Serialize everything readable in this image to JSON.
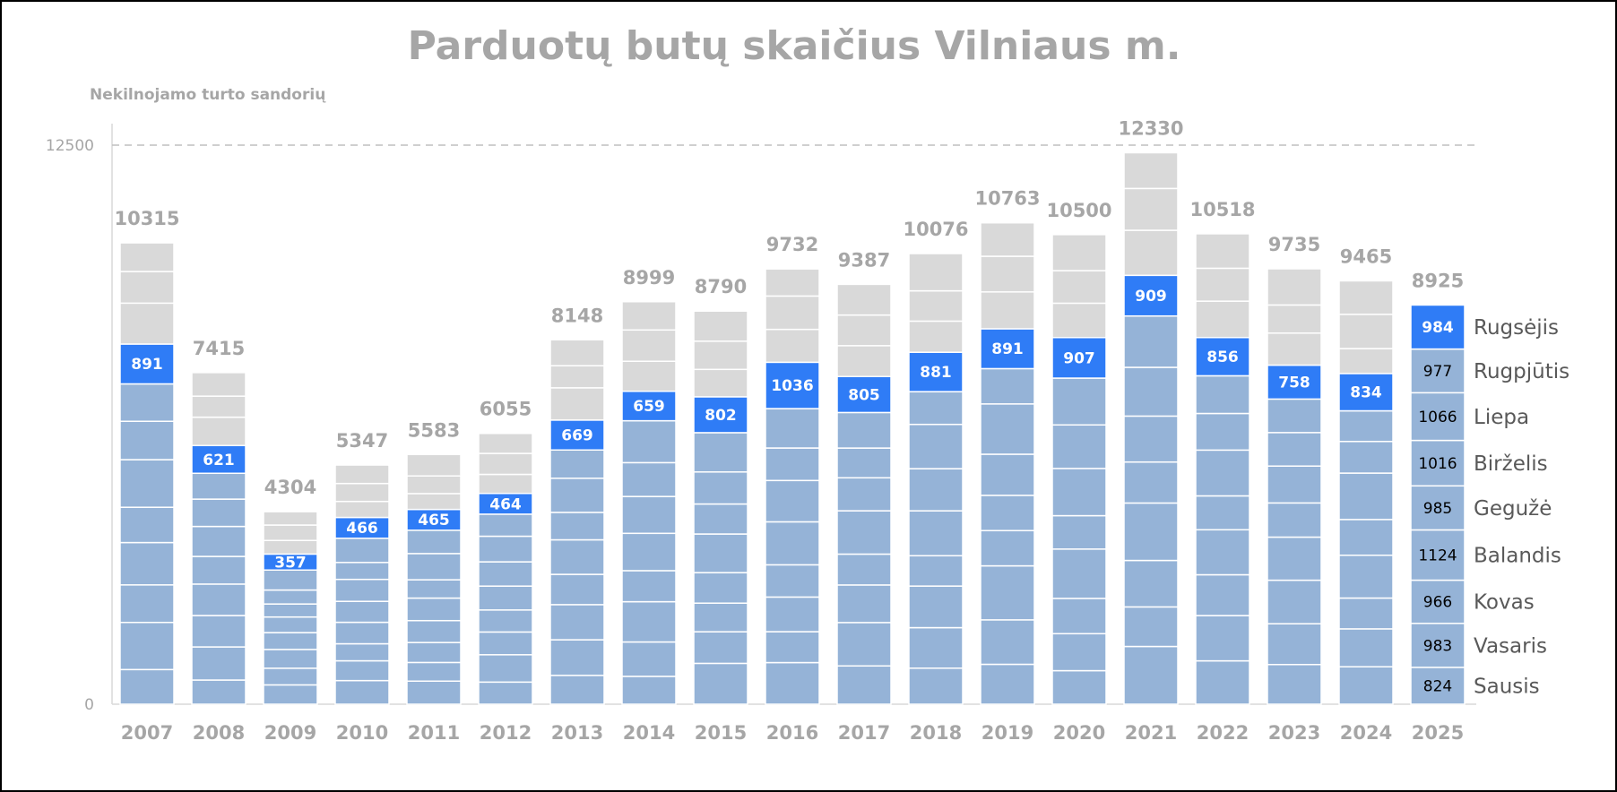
{
  "chart_data": {
    "type": "bar",
    "title": "Parduotų butų skaičius Vilniaus m.",
    "ylabel": "Nekilnojamo turto sandorių",
    "ylim": [
      0,
      12500
    ],
    "yticks": [
      0,
      12500
    ],
    "stacked": true,
    "categories": [
      "2007",
      "2008",
      "2009",
      "2010",
      "2011",
      "2012",
      "2013",
      "2014",
      "2015",
      "2016",
      "2017",
      "2018",
      "2019",
      "2020",
      "2021",
      "2022",
      "2023",
      "2024",
      "2025"
    ],
    "totals": [
      10315,
      7415,
      4304,
      5347,
      5583,
      6055,
      8148,
      8999,
      8790,
      9732,
      9387,
      10076,
      10763,
      10500,
      12330,
      10518,
      9735,
      9465,
      8925
    ],
    "september_values": [
      891,
      621,
      357,
      466,
      465,
      464,
      669,
      659,
      802,
      1036,
      805,
      881,
      891,
      907,
      909,
      856,
      758,
      834,
      984
    ],
    "months_2025": [
      {
        "name": "Sausis",
        "value": 824
      },
      {
        "name": "Vasaris",
        "value": 983
      },
      {
        "name": "Kovas",
        "value": 966
      },
      {
        "name": "Balandis",
        "value": 1124
      },
      {
        "name": "Gegužė",
        "value": 985
      },
      {
        "name": "Birželis",
        "value": 1016
      },
      {
        "name": "Liepa",
        "value": 1066
      },
      {
        "name": "Rugpjūtis",
        "value": 977
      },
      {
        "name": "Rugsėjis",
        "value": 984
      }
    ],
    "series_colors": {
      "jan_aug": "#95b3d7",
      "september": "#2f7cf6",
      "oct_dec": "#d9d9d9"
    },
    "grid": false,
    "reference_line": 12500
  }
}
